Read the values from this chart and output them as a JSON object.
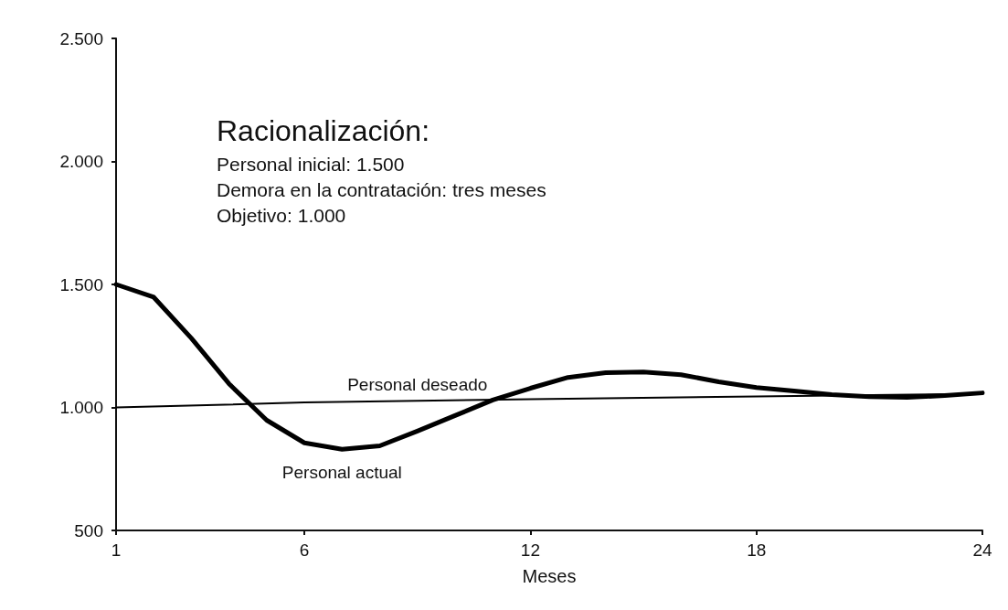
{
  "chart_data": {
    "type": "line",
    "title": "Racionalización:",
    "xlabel": "Meses",
    "annotations": [
      "Personal inicial: 1.500",
      "Demora en la contratación: tres meses",
      "Objetivo: 1.000"
    ],
    "x": [
      1,
      2,
      3,
      4,
      5,
      6,
      7,
      8,
      9,
      10,
      11,
      12,
      13,
      14,
      15,
      16,
      17,
      18,
      19,
      20,
      21,
      22,
      23,
      24
    ],
    "series": [
      {
        "name": "Personal deseado",
        "color": "#000000",
        "x": [
          1,
          6,
          9,
          12,
          18,
          24
        ],
        "values": [
          1000,
          1020,
          1027,
          1033,
          1045,
          1055
        ]
      },
      {
        "name": "Personal actual",
        "color": "#000000",
        "values": [
          1500,
          1448,
          1281,
          1096,
          948,
          856,
          830,
          844,
          904,
          967,
          1030,
          1078,
          1122,
          1141,
          1144,
          1133,
          1104,
          1081,
          1067,
          1052,
          1044,
          1041,
          1048,
          1059
        ]
      }
    ],
    "xlim": [
      1,
      24
    ],
    "xticks": [
      1,
      6,
      12,
      18,
      24
    ],
    "ylim": [
      500,
      2500
    ],
    "yticks": [
      {
        "value": 500,
        "label": "500"
      },
      {
        "value": 1000,
        "label": "1.000"
      },
      {
        "value": 1500,
        "label": "1.500"
      },
      {
        "value": 2000,
        "label": "2.000"
      },
      {
        "value": 2500,
        "label": "2.500"
      }
    ],
    "grid": false,
    "legend": false,
    "marker": "none",
    "line_style": "solid"
  }
}
